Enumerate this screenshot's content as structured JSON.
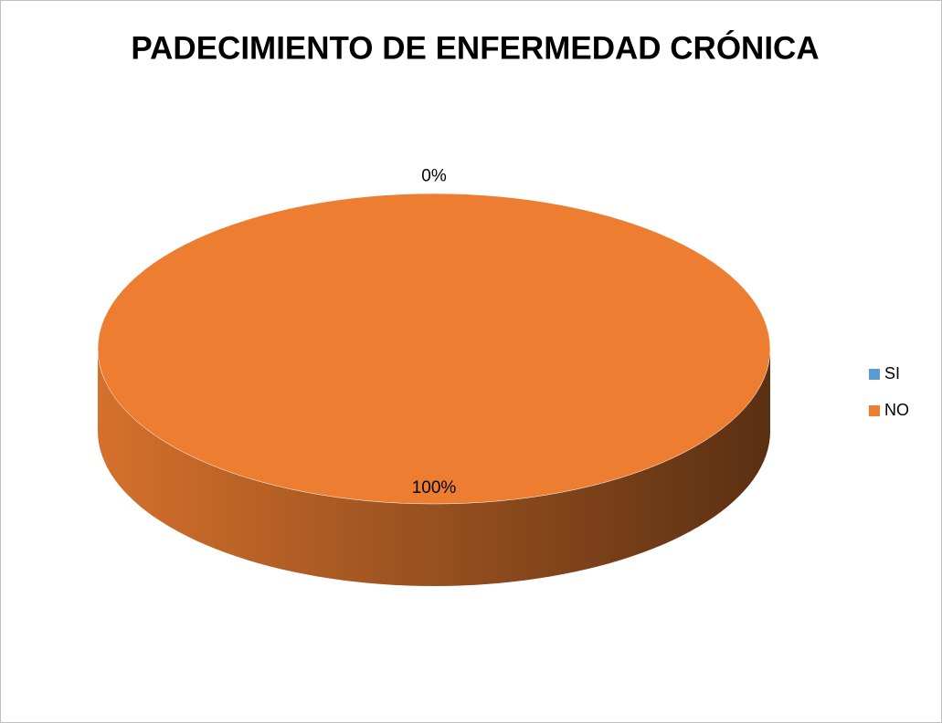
{
  "chart_data": {
    "type": "pie",
    "title": "PADECIMIENTO DE ENFERMEDAD CRÓNICA",
    "categories": [
      "SI",
      "NO"
    ],
    "values": [
      0,
      100
    ],
    "value_labels": [
      "0%",
      "100%"
    ],
    "colors": [
      "#5b9bd5",
      "#ed7d31"
    ],
    "legend": "right"
  }
}
